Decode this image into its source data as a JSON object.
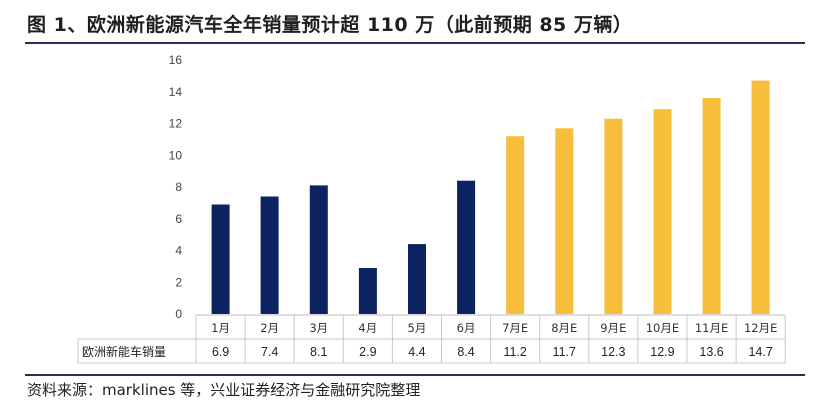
{
  "title": "图 1、欧洲新能源汽车全年销量预计超 110 万（此前预期 85 万辆）",
  "source": "资料来源：marklines 等，兴业证券经济与金融研究院整理",
  "chart_data": {
    "type": "bar",
    "categories": [
      "1月",
      "2月",
      "3月",
      "4月",
      "5月",
      "6月",
      "7月E",
      "8月E",
      "9月E",
      "10月E",
      "11月E",
      "12月E"
    ],
    "series": [
      {
        "name": "欧洲新能车销量",
        "values": [
          6.9,
          7.4,
          8.1,
          2.9,
          4.4,
          8.4,
          11.2,
          11.7,
          12.3,
          12.9,
          13.6,
          14.7
        ]
      }
    ],
    "value_labels": [
      "6.9",
      "7.4",
      "8.1",
      "2.9",
      "4.4",
      "8.4",
      "11.2",
      "11.7",
      "12.3",
      "12.9",
      "13.6",
      "14.7"
    ],
    "bar_colors": [
      "#0d2260",
      "#0d2260",
      "#0d2260",
      "#0d2260",
      "#0d2260",
      "#0d2260",
      "#f7be3c",
      "#f7be3c",
      "#f7be3c",
      "#f7be3c",
      "#f7be3c",
      "#f7be3c"
    ],
    "yticks": [
      "0",
      "2",
      "4",
      "6",
      "8",
      "10",
      "12",
      "14",
      "16"
    ],
    "ylim": [
      0,
      16
    ],
    "grid": false,
    "data_table": true
  }
}
